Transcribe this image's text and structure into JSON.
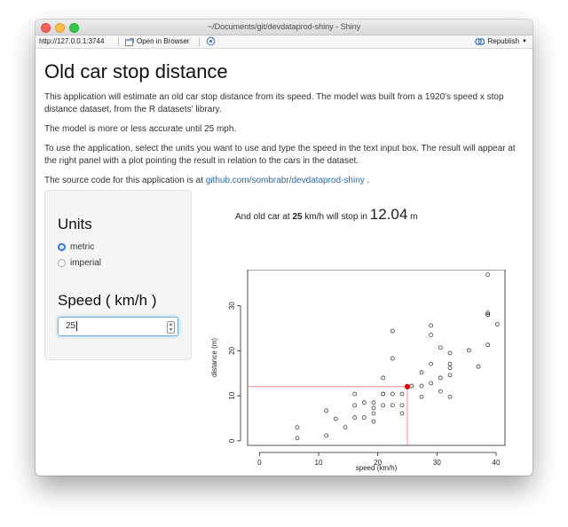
{
  "window": {
    "title": "~/Documents/git/devdataprod-shiny - Shiny"
  },
  "toolbar": {
    "url": "http://127.0.0.1:3744",
    "open_browser": "Open in Browser",
    "republish": "Republish"
  },
  "page": {
    "title": "Old car stop distance",
    "p1": "This application will estimate an old car stop distance from its speed. The model was built from a 1920's speed x stop distance dataset, from the R datasets' library.",
    "p2": "The model is more or less accurate until 25 mph.",
    "p3": "To use the application, select the units you want to use and type the speed in the text input box. The result will appear at the right panel with a plot pointing the result in relation to the cars in the dataset.",
    "p4_prefix": "The source code for this application is at ",
    "p4_link": "github.com/sombrabr/devdataprod-shiny",
    "p4_suffix": " ."
  },
  "sidebar": {
    "units_title": "Units",
    "options": [
      {
        "label": "metric",
        "selected": true
      },
      {
        "label": "imperial",
        "selected": false
      }
    ],
    "speed_title": "Speed ( km/h )",
    "speed_value": "25"
  },
  "result": {
    "prefix": "And old car at ",
    "speed": "25",
    "mid": " km/h will stop in ",
    "distance": "12.04",
    "suffix": " m"
  },
  "colors": {
    "accent": "#2d7be5",
    "link": "#2a6ab0",
    "marker": "#e8000b",
    "guide": "#ff8a8a"
  },
  "chart_data": {
    "type": "scatter",
    "xlabel": "speed (km/h)",
    "ylabel": "distance (m)",
    "xlim": [
      -2,
      41.5
    ],
    "ylim": [
      -1,
      38
    ],
    "xticks": [
      0,
      10,
      20,
      30,
      40
    ],
    "yticks": [
      0,
      10,
      20,
      30
    ],
    "points": [
      [
        6.4,
        0.6
      ],
      [
        6.4,
        3.0
      ],
      [
        11.3,
        1.2
      ],
      [
        11.3,
        6.7
      ],
      [
        12.9,
        4.9
      ],
      [
        14.5,
        3.0
      ],
      [
        16.1,
        5.2
      ],
      [
        16.1,
        7.9
      ],
      [
        16.1,
        10.4
      ],
      [
        17.7,
        5.2
      ],
      [
        17.7,
        8.5
      ],
      [
        19.3,
        4.3
      ],
      [
        19.3,
        6.1
      ],
      [
        19.3,
        7.3
      ],
      [
        19.3,
        8.5
      ],
      [
        20.9,
        7.9
      ],
      [
        20.9,
        10.4
      ],
      [
        20.9,
        10.4
      ],
      [
        20.9,
        14.0
      ],
      [
        22.5,
        7.9
      ],
      [
        22.5,
        10.4
      ],
      [
        22.5,
        18.3
      ],
      [
        22.5,
        24.4
      ],
      [
        24.1,
        6.1
      ],
      [
        24.1,
        7.9
      ],
      [
        24.1,
        10.4
      ],
      [
        25.7,
        12.2
      ],
      [
        27.4,
        9.8
      ],
      [
        27.4,
        12.2
      ],
      [
        27.4,
        15.2
      ],
      [
        29.0,
        12.8
      ],
      [
        29.0,
        17.1
      ],
      [
        29.0,
        23.5
      ],
      [
        29.0,
        25.6
      ],
      [
        30.6,
        11.0
      ],
      [
        30.6,
        14.0
      ],
      [
        30.6,
        20.7
      ],
      [
        32.2,
        9.8
      ],
      [
        32.2,
        14.6
      ],
      [
        32.2,
        16.2
      ],
      [
        32.2,
        17.1
      ],
      [
        32.2,
        19.5
      ],
      [
        35.4,
        20.1
      ],
      [
        37.0,
        16.5
      ],
      [
        38.6,
        21.3
      ],
      [
        38.6,
        28.0
      ],
      [
        38.6,
        28.4
      ],
      [
        38.6,
        36.9
      ],
      [
        38.6,
        28.0
      ],
      [
        40.2,
        25.9
      ]
    ],
    "highlight": {
      "x": 25,
      "y": 12.04
    }
  }
}
